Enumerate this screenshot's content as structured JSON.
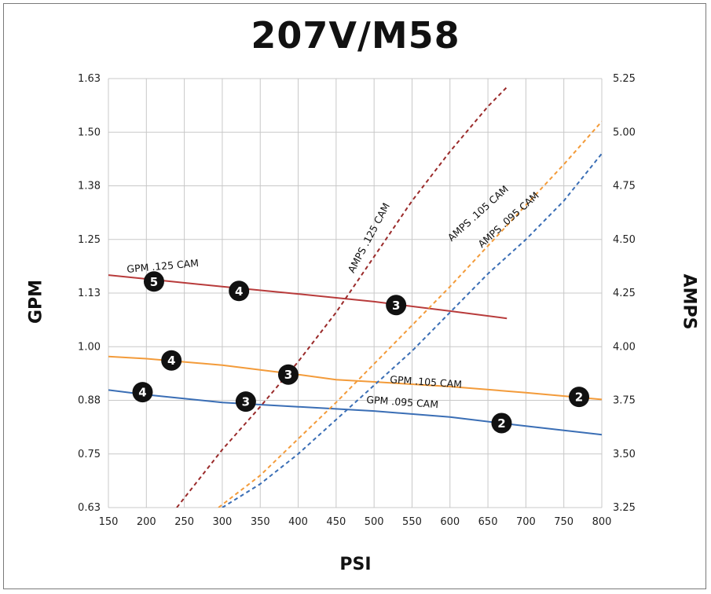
{
  "chart_data": {
    "type": "line",
    "title": "207V/M58",
    "xlabel": "PSI",
    "ylabel": "GPM",
    "y2label": "AMPS",
    "xlim": [
      150,
      800
    ],
    "ylim": [
      0.625,
      1.625
    ],
    "y2lim": [
      3.25,
      5.25
    ],
    "x_ticks": [
      150,
      200,
      250,
      300,
      350,
      400,
      450,
      500,
      550,
      600,
      650,
      700,
      750,
      800
    ],
    "y_ticks": [
      0.625,
      0.75,
      0.875,
      1.0,
      1.125,
      1.25,
      1.375,
      1.5,
      1.625
    ],
    "y_tick_labels": [
      "0.63",
      "0.75",
      "0.88",
      "1.00",
      "1.13",
      "1.25",
      "1.38",
      "1.50",
      "1.63"
    ],
    "y2_ticks": [
      3.25,
      3.5,
      3.75,
      4.0,
      4.25,
      4.5,
      4.75,
      5.0,
      5.25
    ],
    "y2_tick_labels": [
      "3.25",
      "3.50",
      "3.75",
      "4.00",
      "4.25",
      "4.50",
      "4.75",
      "5.00",
      "5.25"
    ],
    "grid": true,
    "series": [
      {
        "name": "GPM .125 CAM",
        "axis": "left",
        "style": "solid",
        "color": "#b83b3b",
        "x": [
          150,
          200,
          300,
          400,
          500,
          600,
          675
        ],
        "y": [
          1.167,
          1.158,
          1.14,
          1.123,
          1.105,
          1.083,
          1.066
        ]
      },
      {
        "name": "GPM .105 CAM",
        "axis": "left",
        "style": "solid",
        "color": "#f39b3a",
        "x": [
          150,
          200,
          300,
          400,
          450,
          500,
          600,
          700,
          800
        ],
        "y": [
          0.977,
          0.972,
          0.957,
          0.935,
          0.923,
          0.918,
          0.907,
          0.893,
          0.877
        ]
      },
      {
        "name": "GPM .095 CAM",
        "axis": "left",
        "style": "solid",
        "color": "#3a6eb5",
        "x": [
          150,
          200,
          300,
          400,
          500,
          600,
          700,
          800
        ],
        "y": [
          0.899,
          0.888,
          0.87,
          0.86,
          0.85,
          0.836,
          0.815,
          0.795
        ]
      },
      {
        "name": "AMPS .125 CAM",
        "axis": "right",
        "style": "dashed",
        "color": "#9a2a2a",
        "x": [
          240,
          300,
          350,
          400,
          450,
          500,
          550,
          600,
          650,
          675
        ],
        "y": [
          3.25,
          3.52,
          3.72,
          3.93,
          4.16,
          4.42,
          4.68,
          4.91,
          5.12,
          5.21
        ]
      },
      {
        "name": "AMPS .105 CAM",
        "axis": "right",
        "style": "dashed",
        "color": "#f39b3a",
        "x": [
          295,
          350,
          400,
          450,
          500,
          550,
          600,
          650,
          700,
          750,
          800
        ],
        "y": [
          3.25,
          3.4,
          3.57,
          3.74,
          3.92,
          4.1,
          4.28,
          4.47,
          4.66,
          4.85,
          5.05
        ]
      },
      {
        "name": "AMPS .095 CAM",
        "axis": "right",
        "style": "dashed",
        "color": "#3a6eb5",
        "x": [
          300,
          350,
          400,
          450,
          500,
          550,
          600,
          650,
          700,
          750,
          800
        ],
        "y": [
          3.25,
          3.36,
          3.5,
          3.66,
          3.82,
          3.98,
          4.16,
          4.34,
          4.5,
          4.68,
          4.9
        ]
      }
    ],
    "annotations": [
      {
        "text": "GPM .125 CAM",
        "x": 222,
        "y": 1.18,
        "axis": "left",
        "angle": -5
      },
      {
        "text": "GPM .105 CAM",
        "x": 568,
        "y": 0.91,
        "axis": "left",
        "angle": 4
      },
      {
        "text": "GPM .095 CAM",
        "x": 537,
        "y": 0.863,
        "axis": "left",
        "angle": 4
      },
      {
        "text": "AMPS .125 CAM",
        "x": 497,
        "y": 4.5,
        "axis": "right",
        "angle": -62
      },
      {
        "text": "AMPS .105 CAM",
        "x": 640,
        "y": 4.61,
        "axis": "right",
        "angle": -42
      },
      {
        "text": "AMPS .095 CAM",
        "x": 680,
        "y": 4.58,
        "axis": "right",
        "angle": -42
      }
    ],
    "markers": [
      {
        "label": "5",
        "x": 210,
        "y": 1.152
      },
      {
        "label": "4",
        "x": 322,
        "y": 1.13
      },
      {
        "label": "3",
        "x": 529,
        "y": 1.097
      },
      {
        "label": "4",
        "x": 233,
        "y": 0.968
      },
      {
        "label": "3",
        "x": 387,
        "y": 0.935
      },
      {
        "label": "2",
        "x": 770,
        "y": 0.883
      },
      {
        "label": "4",
        "x": 195,
        "y": 0.894
      },
      {
        "label": "3",
        "x": 331,
        "y": 0.872
      },
      {
        "label": "2",
        "x": 668,
        "y": 0.822
      }
    ]
  }
}
